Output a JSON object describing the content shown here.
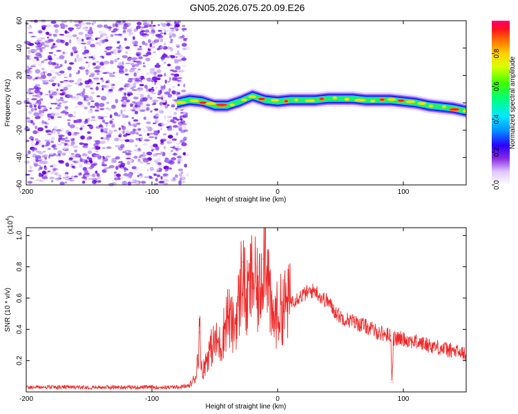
{
  "title": "GN05.2026.075.20.09.E26",
  "colors": {
    "snr_line": "#ee2a2a",
    "noise_dots": "#6a00e0",
    "axes": "#000000",
    "background": "#ffffff"
  },
  "chart_data": [
    {
      "type": "heatmap",
      "title": "GN05.2026.075.20.09.E26",
      "xlabel": "Height of straight line (km)",
      "ylabel": "Frequency (Hz)",
      "xlim": [
        -200,
        150
      ],
      "ylim": [
        -60,
        60
      ],
      "x_ticks": [
        -200,
        -100,
        0,
        100
      ],
      "x_tick_labels": [
        "-200",
        "-100",
        "0",
        "100"
      ],
      "y_ticks": [
        -60,
        -40,
        -20,
        0,
        20,
        40,
        60
      ],
      "y_tick_labels": [
        "-60",
        "-40",
        "-20",
        "0",
        "20",
        "40",
        "60"
      ],
      "colorbar": {
        "label": "Normalized spectral amplitude",
        "range": [
          0,
          1
        ],
        "ticks": [
          0.0,
          0.2,
          0.4,
          0.6,
          0.8
        ],
        "tick_labels": [
          "0.0",
          "0.2",
          "0.4",
          "0.6",
          "0.8"
        ],
        "colormap": "rainbow"
      },
      "noise_region_x": [
        -200,
        -75
      ],
      "signal_band": {
        "x": [
          -80,
          -70,
          -60,
          -50,
          -40,
          -30,
          -20,
          -10,
          0,
          10,
          20,
          30,
          40,
          50,
          60,
          70,
          80,
          90,
          100,
          110,
          120,
          130,
          140,
          150
        ],
        "center_hz": [
          0,
          2,
          1,
          -2,
          -2,
          1,
          5,
          2,
          1,
          2,
          2,
          2,
          3,
          3,
          3,
          2,
          2,
          2,
          1,
          0,
          -2,
          -3,
          -4,
          -6
        ],
        "halfwidth_hz": [
          3,
          3,
          3,
          3,
          3,
          3,
          3,
          3,
          3,
          3,
          3,
          3,
          3,
          3,
          3,
          3,
          3,
          3,
          3,
          3,
          3,
          3,
          3,
          3
        ]
      }
    },
    {
      "type": "line",
      "xlabel": "Height of straight line (km)",
      "ylabel": "SNR (10 * v/v)",
      "scale_label": "(x10",
      "scale_exp": "4",
      "xlim": [
        -200,
        150
      ],
      "ylim": [
        0,
        1.05
      ],
      "x_ticks": [
        -200,
        -100,
        0,
        100
      ],
      "x_tick_labels": [
        "-200",
        "-100",
        "0",
        "100"
      ],
      "y_ticks": [
        0.2,
        0.4,
        0.6,
        0.8,
        1.0
      ],
      "y_tick_labels": [
        "0.2",
        "0.4",
        "0.6",
        "0.8",
        "1.0"
      ],
      "series": [
        {
          "x": [
            -200,
            -180,
            -160,
            -140,
            -120,
            -100,
            -80,
            -70,
            -65,
            -62,
            -60,
            -55,
            -50,
            -45,
            -40,
            -35,
            -30,
            -28,
            -25,
            -20,
            -15,
            -12,
            -10,
            -5,
            0,
            5,
            10,
            15,
            20,
            25,
            30,
            35,
            40,
            45,
            50,
            60,
            70,
            80,
            90,
            91,
            92,
            100,
            110,
            120,
            130,
            140,
            150
          ],
          "values": [
            0.03,
            0.03,
            0.03,
            0.03,
            0.03,
            0.03,
            0.03,
            0.04,
            0.1,
            0.38,
            0.12,
            0.25,
            0.32,
            0.3,
            0.5,
            0.4,
            0.6,
            0.83,
            0.55,
            0.75,
            0.6,
            0.85,
            1.05,
            0.45,
            0.5,
            0.55,
            0.58,
            0.6,
            0.62,
            0.64,
            0.65,
            0.6,
            0.58,
            0.52,
            0.48,
            0.45,
            0.42,
            0.38,
            0.36,
            0.06,
            0.34,
            0.34,
            0.32,
            0.3,
            0.28,
            0.26,
            0.24
          ]
        }
      ]
    }
  ]
}
